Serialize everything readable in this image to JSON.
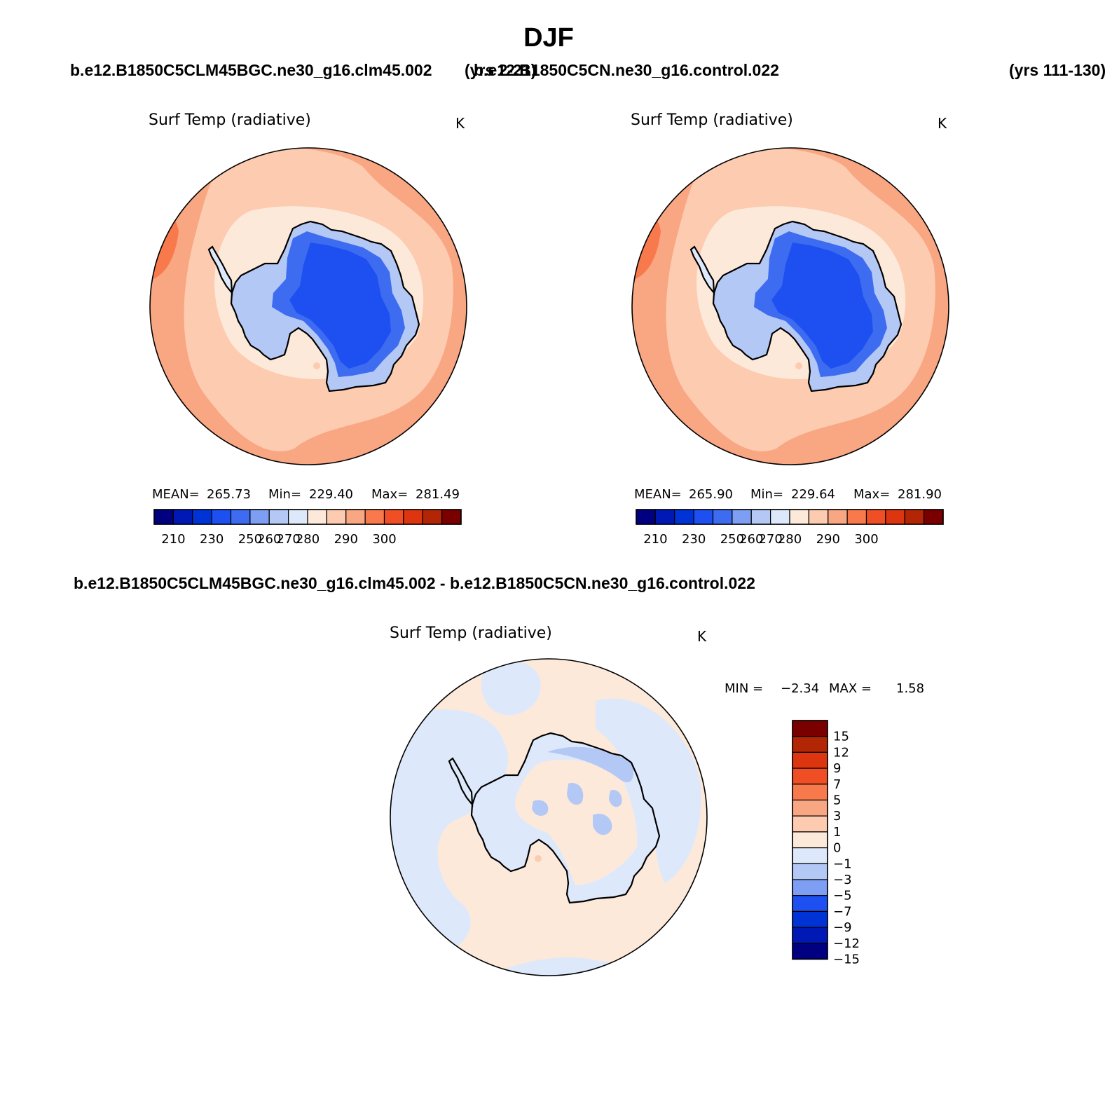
{
  "figure": {
    "title": "DJF",
    "case_label": "b.e12.B1850C5CLM45BGC.ne30_g16.clm45.002",
    "case_years": "(yrs 2-21)",
    "control_label": "b.e12.B1850C5CN.ne30_g16.control.022",
    "control_years": "(yrs 111-130)",
    "diff_label": "b.e12.B1850C5CLM45BGC.ne30_g16.clm45.002 - b.e12.B1850C5CN.ne30_g16.control.022"
  },
  "colors": {
    "abs_scale": [
      "#000080",
      "#0019B4",
      "#0033D6",
      "#1E4FF0",
      "#3D6CF0",
      "#7D9EF2",
      "#B4C8F6",
      "#DDE9FB",
      "#FDE9DA",
      "#FCCBB0",
      "#F9A682",
      "#F87A4C",
      "#F04F26",
      "#DC3510",
      "#B22505",
      "#7A0000"
    ],
    "diff_scale": [
      "#000080",
      "#0019B4",
      "#0033D6",
      "#1E4FF0",
      "#7D9EF2",
      "#B4C8F6",
      "#DDE9FB",
      "#FDE9DA",
      "#FCCBB0",
      "#F9A682",
      "#F87A4C",
      "#F04F26",
      "#DC3510",
      "#B22505",
      "#7A0000"
    ]
  },
  "chart_data": [
    {
      "type": "heatmap",
      "projection": "south-polar-stereographic",
      "title": "Surf Temp (radiative)",
      "units": "K",
      "stats": {
        "mean_label": "MEAN=",
        "mean": "265.73",
        "min_label": "Min=",
        "min": "229.40",
        "max_label": "Max=",
        "max": "281.49"
      },
      "colorbar_ticks": [
        "210",
        "230",
        "250",
        "260",
        "270",
        "280",
        "290",
        "300"
      ]
    },
    {
      "type": "heatmap",
      "projection": "south-polar-stereographic",
      "title": "Surf Temp (radiative)",
      "units": "K",
      "stats": {
        "mean_label": "MEAN=",
        "mean": "265.90",
        "min_label": "Min=",
        "min": "229.64",
        "max_label": "Max=",
        "max": "281.90"
      },
      "colorbar_ticks": [
        "210",
        "230",
        "250",
        "260",
        "270",
        "280",
        "290",
        "300"
      ]
    },
    {
      "type": "heatmap",
      "projection": "south-polar-stereographic",
      "title": "Surf Temp (radiative)",
      "units": "K",
      "stats": {
        "min_label": "MIN =",
        "min": "−2.34",
        "max_label": "MAX =",
        "max": "1.58"
      },
      "colorbar_ticks": [
        "15",
        "12",
        "9",
        "7",
        "5",
        "3",
        "1",
        "0",
        "−1",
        "−3",
        "−5",
        "−7",
        "−9",
        "−12",
        "−15"
      ]
    }
  ]
}
